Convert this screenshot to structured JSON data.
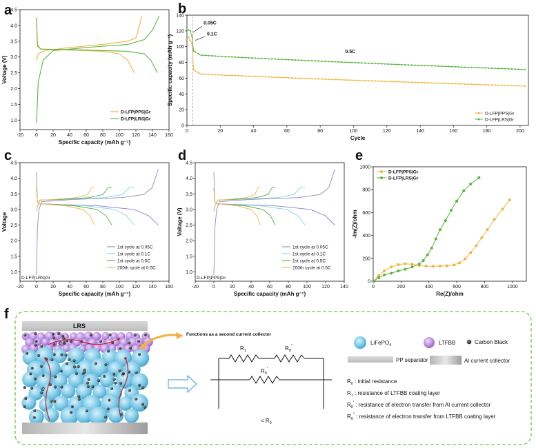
{
  "panels": {
    "a": "a",
    "b": "b",
    "c": "c",
    "d": "d",
    "e": "e",
    "f": "f"
  },
  "colors": {
    "orange": "#f2b33d",
    "green": "#58b43c",
    "cycle1_005": "#8f86c8",
    "cycle1_01": "#7fd3e8",
    "cycle1_05": "#5aaa45",
    "cycle200_05": "#f0b54a",
    "lfp": "#7cc8e6",
    "ltfbb": "#b98ee0",
    "dash_border": "#73c34d",
    "arrow_orange": "#f5b041"
  },
  "chart_data": [
    {
      "panel": "a",
      "type": "line",
      "xlabel": "Specific capacity (mAh g⁻¹)",
      "ylabel": "Voltage (V)",
      "xlim": [
        -20,
        160
      ],
      "ylim": [
        0.7,
        4.5
      ],
      "xticks": [
        "-20",
        "0",
        "20",
        "40",
        "60",
        "80",
        "100",
        "120",
        "140",
        "160"
      ],
      "yticks": [
        "1.0",
        "1.5",
        "2.0",
        "2.5",
        "3.0",
        "3.5",
        "4.0",
        "4.5"
      ],
      "legend": "lower-right",
      "series": [
        {
          "name": "D-LFP|PPS|Gr",
          "color": "#f2b33d",
          "charge": [
            [
              0,
              2.9
            ],
            [
              2,
              3.1
            ],
            [
              10,
              3.2
            ],
            [
              40,
              3.3
            ],
            [
              80,
              3.4
            ],
            [
              110,
              3.5
            ],
            [
              120,
              3.6
            ],
            [
              125,
              4.05
            ],
            [
              127,
              4.3
            ]
          ],
          "discharge": [
            [
              0,
              4.2
            ],
            [
              1,
              3.4
            ],
            [
              5,
              3.25
            ],
            [
              40,
              3.22
            ],
            [
              80,
              3.18
            ],
            [
              100,
              3.1
            ],
            [
              110,
              2.9
            ],
            [
              118,
              2.5
            ]
          ]
        },
        {
          "name": "D-LFP|LRS|Gr",
          "color": "#58b43c",
          "charge": [
            [
              0,
              0.9
            ],
            [
              2,
              2.2
            ],
            [
              8,
              2.9
            ],
            [
              20,
              3.2
            ],
            [
              60,
              3.3
            ],
            [
              110,
              3.4
            ],
            [
              130,
              3.55
            ],
            [
              140,
              3.85
            ],
            [
              148,
              4.3
            ]
          ],
          "discharge": [
            [
              0,
              4.25
            ],
            [
              1,
              3.35
            ],
            [
              5,
              3.25
            ],
            [
              60,
              3.22
            ],
            [
              110,
              3.18
            ],
            [
              130,
              3.1
            ],
            [
              138,
              2.9
            ],
            [
              146,
              2.5
            ]
          ]
        }
      ]
    },
    {
      "panel": "b",
      "type": "scatter",
      "xlabel": "Cycle",
      "ylabel": "Specific capacity (mAh g⁻¹)",
      "xlim": [
        0,
        205
      ],
      "ylim": [
        0,
        140
      ],
      "xticks": [
        "0",
        "20",
        "40",
        "60",
        "80",
        "100",
        "120",
        "140",
        "160",
        "180",
        "200"
      ],
      "yticks": [
        "0",
        "20",
        "40",
        "60",
        "80",
        "100",
        "120",
        "140"
      ],
      "legend": "lower-right",
      "annotations": [
        "0.05C",
        "0.1C",
        "0.5C"
      ],
      "series": [
        {
          "name": "D-LFP|PPS|Gr",
          "color": "#f2b33d",
          "start": [
            [
              1,
              112
            ],
            [
              2,
              108
            ],
            [
              3,
              104
            ]
          ],
          "end0": 66,
          "end200": 50
        },
        {
          "name": "D-LFP|LRS|Gr",
          "color": "#58b43c",
          "start": [
            [
              1,
              121
            ],
            [
              2,
              120
            ],
            [
              3,
              113
            ]
          ],
          "end0": 90,
          "end200": 71
        }
      ]
    },
    {
      "panel": "c",
      "type": "line",
      "xlabel": "Specific capacity (mAh g⁻¹)",
      "ylabel": "Voltage",
      "xlim": [
        -20,
        160
      ],
      "ylim": [
        0.7,
        4.5
      ],
      "xticks": [
        "-20",
        "0",
        "20",
        "40",
        "60",
        "80",
        "100",
        "120",
        "140",
        "160"
      ],
      "yticks": [
        "1.0",
        "1.5",
        "2.0",
        "2.5",
        "3.0",
        "3.5",
        "4.0",
        "4.5"
      ],
      "label": "D-LFP|LRS|Gr",
      "legend": "lower-right",
      "series": [
        {
          "name": "1st cycle at 0.05C",
          "color": "#8f86c8",
          "cap": 147
        },
        {
          "name": "1st cycle at 0.1C",
          "color": "#7fd3e8",
          "cap": 118
        },
        {
          "name": "1st cycle at 0.5C",
          "color": "#5aaa45",
          "cap": 91
        },
        {
          "name": "200th cycle at 0.5C",
          "color": "#f0b54a",
          "cap": 70
        }
      ]
    },
    {
      "panel": "d",
      "type": "line",
      "xlabel": "Specific capacity (mAh g⁻¹)",
      "ylabel": "Voltage (V)",
      "xlim": [
        -20,
        140
      ],
      "ylim": [
        0.7,
        4.5
      ],
      "xticks": [
        "-20",
        "0",
        "20",
        "40",
        "60",
        "80",
        "100",
        "120",
        "140"
      ],
      "yticks": [
        "1.0",
        "1.5",
        "2.0",
        "2.5",
        "3.0",
        "3.5",
        "4.0",
        "4.5"
      ],
      "label": "D-LFP|PPS|Gr",
      "legend": "lower-right",
      "series": [
        {
          "name": "1st cycle at 0.05C",
          "color": "#8f86c8",
          "cap": 130
        },
        {
          "name": "1st cycle at 0.1C",
          "color": "#7fd3e8",
          "cap": 98
        },
        {
          "name": "1st cycle at 0.5C",
          "color": "#5aaa45",
          "cap": 66
        },
        {
          "name": "200th cycle at 0.5C",
          "color": "#f0b54a",
          "cap": 50
        }
      ]
    },
    {
      "panel": "e",
      "type": "scatter",
      "xlabel": "Re(Z)/ohm",
      "ylabel": "-Im(Z)/ohm",
      "xlim": [
        0,
        1100
      ],
      "ylim": [
        0,
        1000
      ],
      "xticks": [
        "0",
        "200",
        "400",
        "600",
        "800",
        "1000"
      ],
      "yticks": [
        "0",
        "200",
        "400",
        "600",
        "800",
        "1000"
      ],
      "legend": "top-left",
      "series": [
        {
          "name": "D-LFP|PPS|Gr",
          "color": "#f2b33d",
          "points": [
            [
              5,
              2
            ],
            [
              40,
              50
            ],
            [
              80,
              90
            ],
            [
              130,
              125
            ],
            [
              180,
              145
            ],
            [
              230,
              152
            ],
            [
              280,
              148
            ],
            [
              330,
              138
            ],
            [
              380,
              132
            ],
            [
              430,
              130
            ],
            [
              480,
              132
            ],
            [
              530,
              135
            ],
            [
              580,
              142
            ],
            [
              620,
              160
            ],
            [
              660,
              195
            ],
            [
              700,
              250
            ],
            [
              740,
              310
            ],
            [
              780,
              380
            ],
            [
              820,
              450
            ],
            [
              870,
              540
            ],
            [
              930,
              630
            ],
            [
              980,
              710
            ]
          ]
        },
        {
          "name": "D-LFP|LRS|Gr",
          "color": "#58b43c",
          "points": [
            [
              5,
              2
            ],
            [
              40,
              30
            ],
            [
              80,
              55
            ],
            [
              130,
              70
            ],
            [
              180,
              90
            ],
            [
              230,
              105
            ],
            [
              280,
              125
            ],
            [
              330,
              150
            ],
            [
              360,
              180
            ],
            [
              390,
              230
            ],
            [
              420,
              290
            ],
            [
              450,
              370
            ],
            [
              480,
              450
            ],
            [
              520,
              530
            ],
            [
              560,
              620
            ],
            [
              600,
              700
            ],
            [
              650,
              790
            ],
            [
              700,
              850
            ],
            [
              760,
              905
            ]
          ]
        }
      ]
    }
  ],
  "panel_f": {
    "lrs_label": "LRS",
    "collector_note": "Functions as a second current collector",
    "legend": {
      "lfp": "LiFePO",
      "lfp_sub": "4",
      "ltfbb": "LTFBB",
      "carbon": "Carbon Black",
      "pp": "PP separator",
      "al": "Al current collector"
    },
    "circuit": {
      "r1": "R",
      "r1_sub": "1",
      "r0pp": "R",
      "r0pp_sub": "0",
      "r0pp_sup": "″",
      "r0p": "R",
      "r0p_sub": "0",
      "r0p_sup": "′",
      "result_prefix": "< R",
      "result_sub": "0"
    },
    "defs": [
      {
        "sym": "R",
        "sub": "0",
        "sup": "",
        "text": ": initial resistance"
      },
      {
        "sym": "R",
        "sub": "1",
        "sup": "",
        "text": ": resistance of LTFBB coating layer"
      },
      {
        "sym": "R",
        "sub": "0",
        "sup": "′",
        "text": ": resistance of electron transfer from Al current collector"
      },
      {
        "sym": "R",
        "sub": "0",
        "sup": "″",
        "text": ": resistance of electron transfer from LTFBB coating layer"
      }
    ],
    "electron": "e"
  }
}
